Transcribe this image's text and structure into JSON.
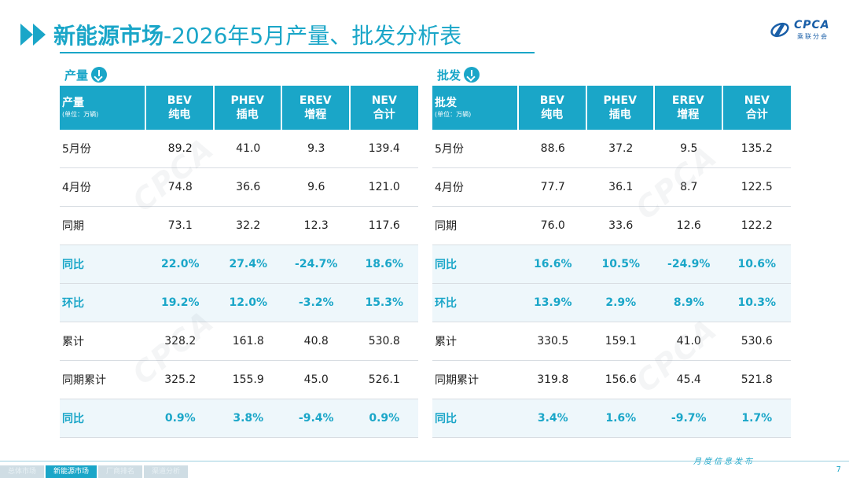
{
  "header": {
    "title_bold": "新能源市场",
    "title_rest": "-2026年5月产量、批发分析表",
    "logo_brand": "CPCA",
    "logo_sub": "乘联分会"
  },
  "colors": {
    "accent": "#1aa6c8",
    "highlight_row_bg": "#eef7fb"
  },
  "production": {
    "section_label": "产量",
    "header": {
      "first": "产量",
      "unit": "(单位：万辆)",
      "cols": [
        {
          "en": "BEV",
          "cn": "纯电"
        },
        {
          "en": "PHEV",
          "cn": "插电"
        },
        {
          "en": "EREV",
          "cn": "增程"
        },
        {
          "en": "NEV",
          "cn": "合计"
        }
      ]
    },
    "rows": [
      {
        "label": "5月份",
        "values": [
          "89.2",
          "41.0",
          "9.3",
          "139.4"
        ],
        "highlight": false
      },
      {
        "label": "4月份",
        "values": [
          "74.8",
          "36.6",
          "9.6",
          "121.0"
        ],
        "highlight": false
      },
      {
        "label": "同期",
        "values": [
          "73.1",
          "32.2",
          "12.3",
          "117.6"
        ],
        "highlight": false
      },
      {
        "label": "同比",
        "values": [
          "22.0%",
          "27.4%",
          "-24.7%",
          "18.6%"
        ],
        "highlight": true
      },
      {
        "label": "环比",
        "values": [
          "19.2%",
          "12.0%",
          "-3.2%",
          "15.3%"
        ],
        "highlight": true
      },
      {
        "label": "累计",
        "values": [
          "328.2",
          "161.8",
          "40.8",
          "530.8"
        ],
        "highlight": false
      },
      {
        "label": "同期累计",
        "values": [
          "325.2",
          "155.9",
          "45.0",
          "526.1"
        ],
        "highlight": false
      },
      {
        "label": "同比",
        "values": [
          "0.9%",
          "3.8%",
          "-9.4%",
          "0.9%"
        ],
        "highlight": true
      }
    ]
  },
  "wholesale": {
    "section_label": "批发",
    "header": {
      "first": "批发",
      "unit": "(单位：万辆)",
      "cols": [
        {
          "en": "BEV",
          "cn": "纯电"
        },
        {
          "en": "PHEV",
          "cn": "插电"
        },
        {
          "en": "EREV",
          "cn": "增程"
        },
        {
          "en": "NEV",
          "cn": "合计"
        }
      ]
    },
    "rows": [
      {
        "label": "5月份",
        "values": [
          "88.6",
          "37.2",
          "9.5",
          "135.2"
        ],
        "highlight": false
      },
      {
        "label": "4月份",
        "values": [
          "77.7",
          "36.1",
          "8.7",
          "122.5"
        ],
        "highlight": false
      },
      {
        "label": "同期",
        "values": [
          "76.0",
          "33.6",
          "12.6",
          "122.2"
        ],
        "highlight": false
      },
      {
        "label": "同比",
        "values": [
          "16.6%",
          "10.5%",
          "-24.9%",
          "10.6%"
        ],
        "highlight": true
      },
      {
        "label": "环比",
        "values": [
          "13.9%",
          "2.9%",
          "8.9%",
          "10.3%"
        ],
        "highlight": true
      },
      {
        "label": "累计",
        "values": [
          "330.5",
          "159.1",
          "41.0",
          "530.6"
        ],
        "highlight": false
      },
      {
        "label": "同期累计",
        "values": [
          "319.8",
          "156.6",
          "45.4",
          "521.8"
        ],
        "highlight": false
      },
      {
        "label": "同比",
        "values": [
          "3.4%",
          "1.6%",
          "-9.7%",
          "1.7%"
        ],
        "highlight": true
      }
    ]
  },
  "footer": {
    "tabs": [
      {
        "label": "总体市场",
        "active": false
      },
      {
        "label": "新能源市场",
        "active": true
      },
      {
        "label": "厂商排名",
        "active": false
      },
      {
        "label": "渠道分析",
        "active": false
      }
    ],
    "note": "月度信息发布",
    "page": "7"
  }
}
